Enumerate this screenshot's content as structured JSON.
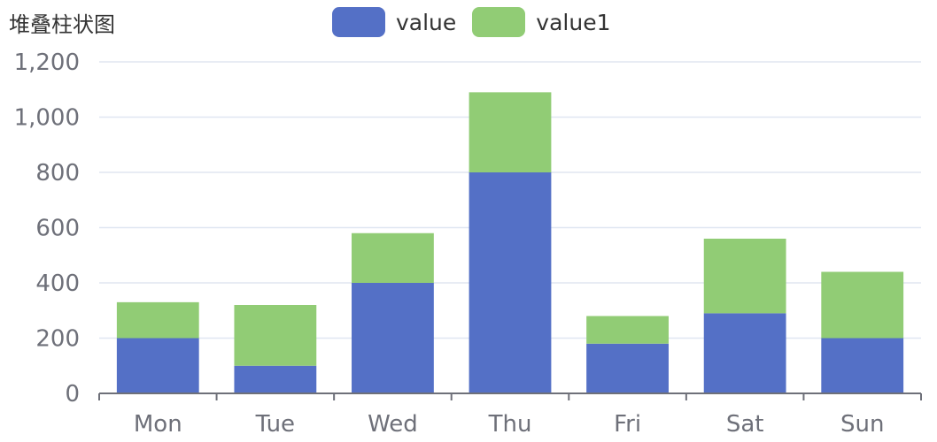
{
  "title": "堆叠柱状图",
  "legend": [
    {
      "name": "value",
      "color": "#5470c6"
    },
    {
      "name": "value1",
      "color": "#91cc75"
    }
  ],
  "chart_data": {
    "type": "bar",
    "stacked": true,
    "title": "堆叠柱状图",
    "categories": [
      "Mon",
      "Tue",
      "Wed",
      "Thu",
      "Fri",
      "Sat",
      "Sun"
    ],
    "series": [
      {
        "name": "value",
        "color": "#5470c6",
        "values": [
          200,
          100,
          400,
          800,
          180,
          290,
          200
        ]
      },
      {
        "name": "value1",
        "color": "#91cc75",
        "values": [
          130,
          220,
          180,
          290,
          100,
          270,
          240
        ]
      }
    ],
    "ylim": [
      0,
      1200
    ],
    "yticks": [
      0,
      200,
      400,
      600,
      800,
      1000,
      1200
    ],
    "ytick_labels": [
      "0",
      "200",
      "400",
      "600",
      "800",
      "1,000",
      "1,200"
    ],
    "grid": true,
    "legend_position": "top-center"
  }
}
